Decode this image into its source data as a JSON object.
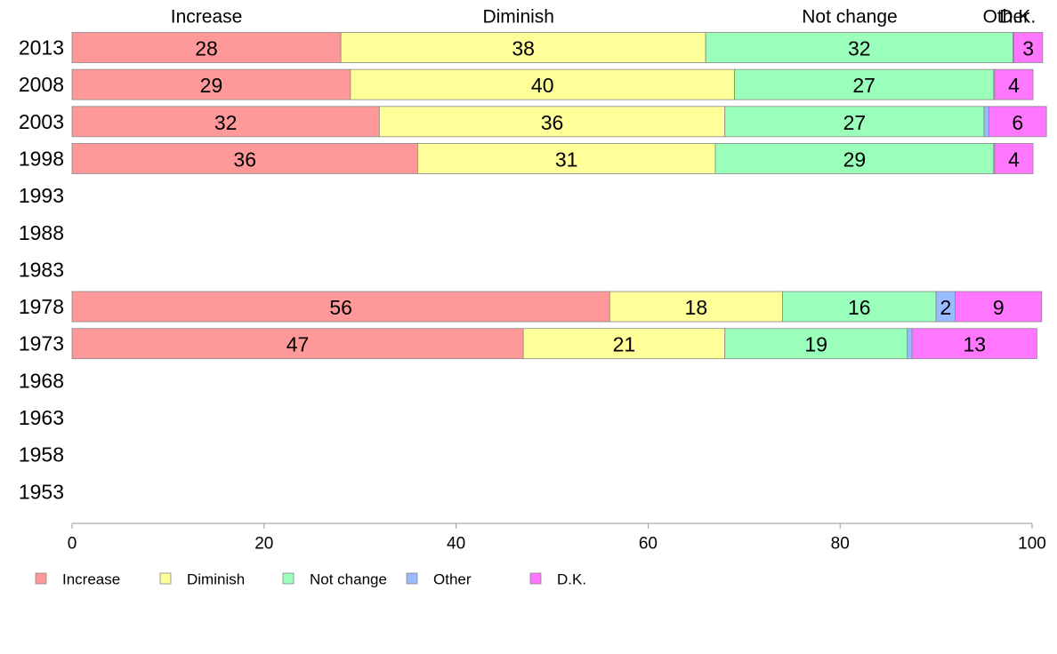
{
  "chart_data": {
    "type": "bar",
    "orientation": "horizontal",
    "stacked": true,
    "categories": [
      "2013",
      "2008",
      "2003",
      "1998",
      "1993",
      "1988",
      "1983",
      "1978",
      "1973",
      "1968",
      "1963",
      "1958",
      "1953"
    ],
    "series": [
      {
        "name": "Increase",
        "color": "#ff9999",
        "values": [
          28,
          29,
          32,
          36,
          null,
          null,
          null,
          56,
          47,
          null,
          null,
          null,
          null
        ],
        "labels": [
          "28",
          "29",
          "32",
          "36",
          "",
          "",
          "",
          "56",
          "47",
          "",
          "",
          "",
          ""
        ]
      },
      {
        "name": "Diminish",
        "color": "#ffff99",
        "values": [
          38,
          40,
          36,
          31,
          null,
          null,
          null,
          18,
          21,
          null,
          null,
          null,
          null
        ],
        "labels": [
          "38",
          "40",
          "36",
          "31",
          "",
          "",
          "",
          "18",
          "21",
          "",
          "",
          "",
          ""
        ]
      },
      {
        "name": "Not change",
        "color": "#99ffbb",
        "values": [
          32,
          27,
          27,
          29,
          null,
          null,
          null,
          16,
          19,
          null,
          null,
          null,
          null
        ],
        "labels": [
          "32",
          "27",
          "27",
          "29",
          "",
          "",
          "",
          "16",
          "19",
          "",
          "",
          "",
          ""
        ]
      },
      {
        "name": "Other",
        "color": "#99bbff",
        "values": [
          0.1,
          0.1,
          0.5,
          0.1,
          null,
          null,
          null,
          2,
          0.5,
          null,
          null,
          null,
          null
        ],
        "labels": [
          "",
          "",
          "",
          "",
          "",
          "",
          "",
          "2",
          "",
          "",
          "",
          "",
          ""
        ]
      },
      {
        "name": "D.K.",
        "color": "#ff77ff",
        "values": [
          3,
          4,
          6,
          4,
          null,
          null,
          null,
          9,
          13,
          null,
          null,
          null,
          null
        ],
        "labels": [
          "3",
          "4",
          "6",
          "4",
          "",
          "",
          "",
          "9",
          "13",
          "",
          "",
          "",
          ""
        ]
      }
    ],
    "top_labels": [
      {
        "text": "Increase",
        "at": 14
      },
      {
        "text": "Diminish",
        "at": 46.5
      },
      {
        "text": "Not change",
        "at": 81
      },
      {
        "text": "Other",
        "at": 97.3
      },
      {
        "text": "D.K.",
        "at": 98.5
      }
    ],
    "xlim": [
      0,
      100
    ],
    "xticks": [
      0,
      20,
      40,
      60,
      80,
      100
    ],
    "xlabel": "",
    "ylabel": "",
    "grid": false,
    "legend": {
      "position": "bottom-left",
      "entries": [
        "Increase",
        "Diminish",
        "Not change",
        "Other",
        "D.K."
      ]
    }
  }
}
